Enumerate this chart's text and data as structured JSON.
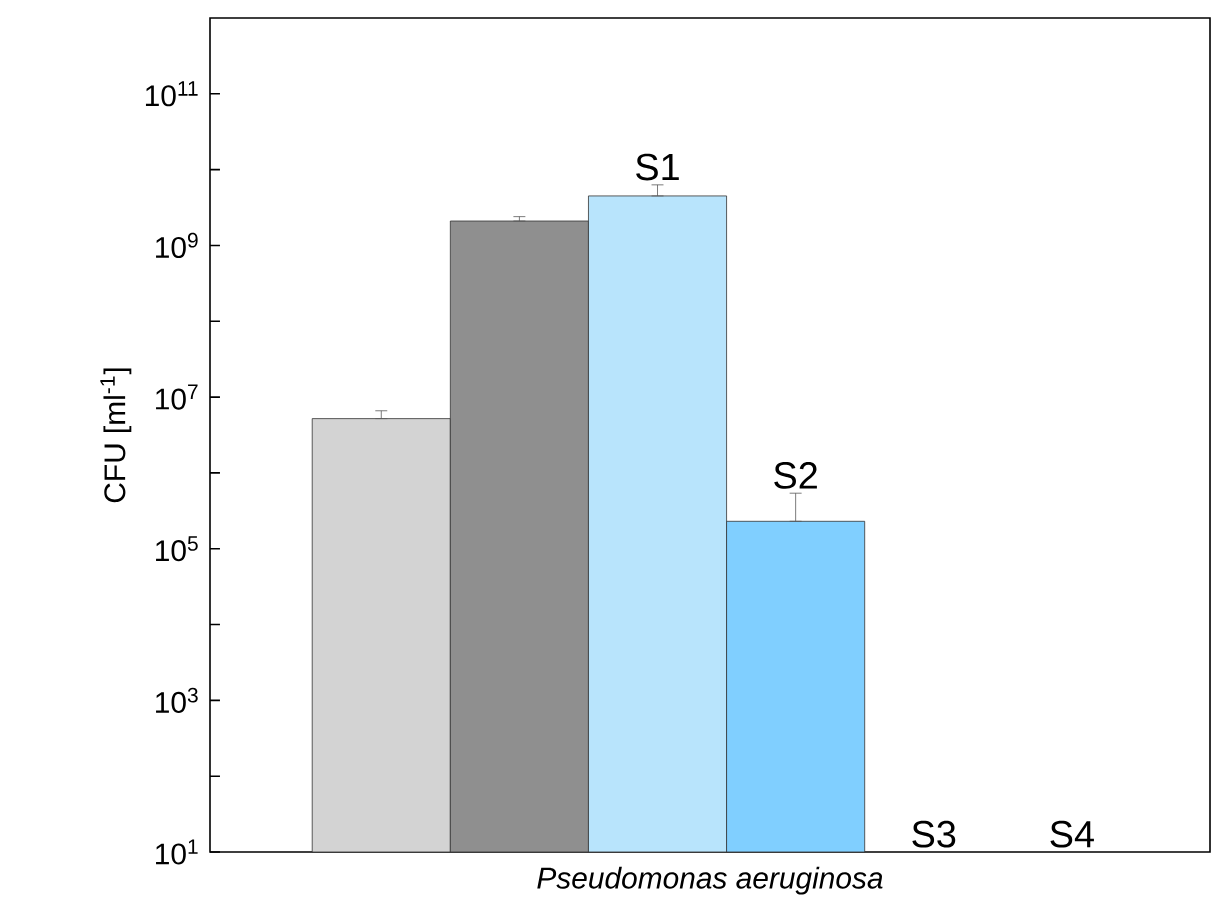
{
  "chart_data": {
    "type": "bar",
    "xlabel": "Pseudomonas aeruginosa",
    "ylabel": "CFU [ml$^{-1}$]",
    "categories": [
      null,
      null,
      null,
      null
    ],
    "values": [
      5200000.0,
      2100000000.0,
      4500000000.0,
      230000.0
    ],
    "colors": [
      "#d3d3d3",
      "#8f8f8f",
      "#b8e4fc",
      "#80cfff"
    ],
    "errors": [
      [
        5200000.0,
        6600000.0
      ],
      [
        2100000000.0,
        2400000000.0
      ],
      [
        4500000000.0,
        6300000000.0
      ],
      [
        230000.0,
        540000.0
      ]
    ],
    "value_labels": [
      null,
      null,
      "S1",
      "S2"
    ],
    "annotations": [
      "S3",
      "S4"
    ],
    "log": true,
    "ylim": [
      10,
      1000000000000.0
    ],
    "yticks": [
      {
        "value": 10,
        "label": "10$^{1}$"
      },
      {
        "value": 1000,
        "label": "10$^{3}$"
      },
      {
        "value": 100000,
        "label": "10$^{5}$"
      },
      {
        "value": 10000000,
        "label": "10$^{7}$"
      },
      {
        "value": 1000000000,
        "label": "10$^{9}$"
      },
      {
        "value": 100000000000,
        "label": "10$^{11}$"
      }
    ]
  }
}
